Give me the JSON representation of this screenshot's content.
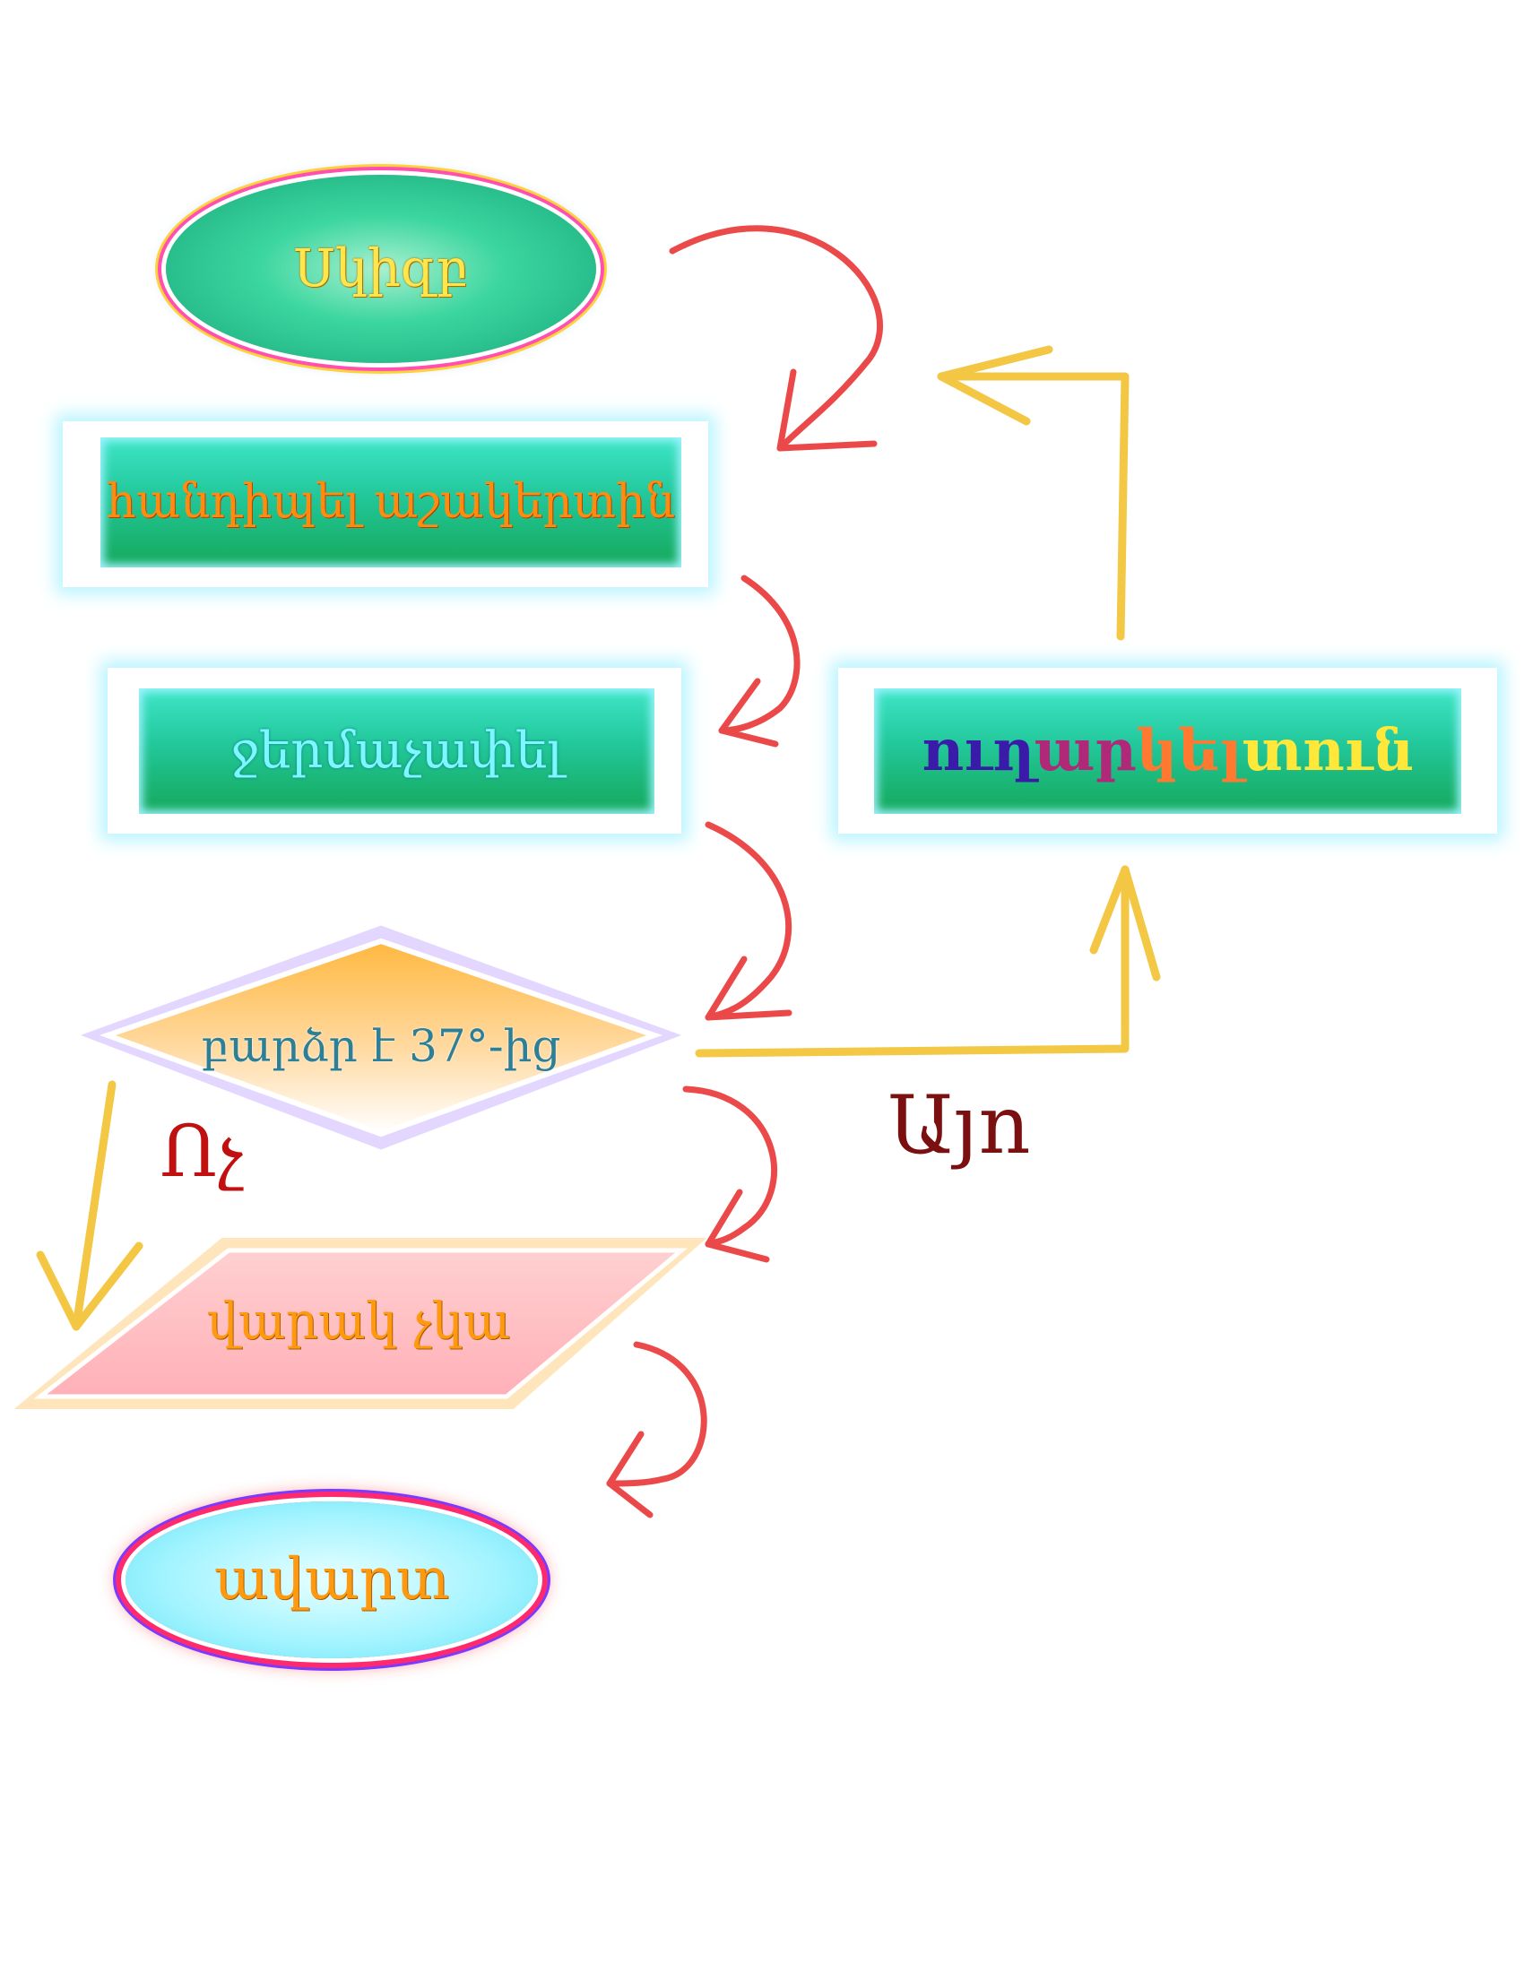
{
  "start": {
    "label": "Սկիզբ"
  },
  "step1": {
    "label": "հանդիպել աշակերտին"
  },
  "step2": {
    "label": "ջերմաչափել"
  },
  "decision": {
    "label": "բարձր է 37°-ից",
    "yes": "Այո",
    "no": "Ոչ"
  },
  "send_home": {
    "parts": [
      "ուղ",
      "ար",
      "կել ",
      "տուն"
    ]
  },
  "no_danger": {
    "label": "վարակ չկա"
  },
  "end": {
    "label": "ավարտ"
  },
  "colors": {
    "green": "#15a85a",
    "arrow_red": "#e82a2a",
    "arrow_yellow": "#f2c230"
  }
}
